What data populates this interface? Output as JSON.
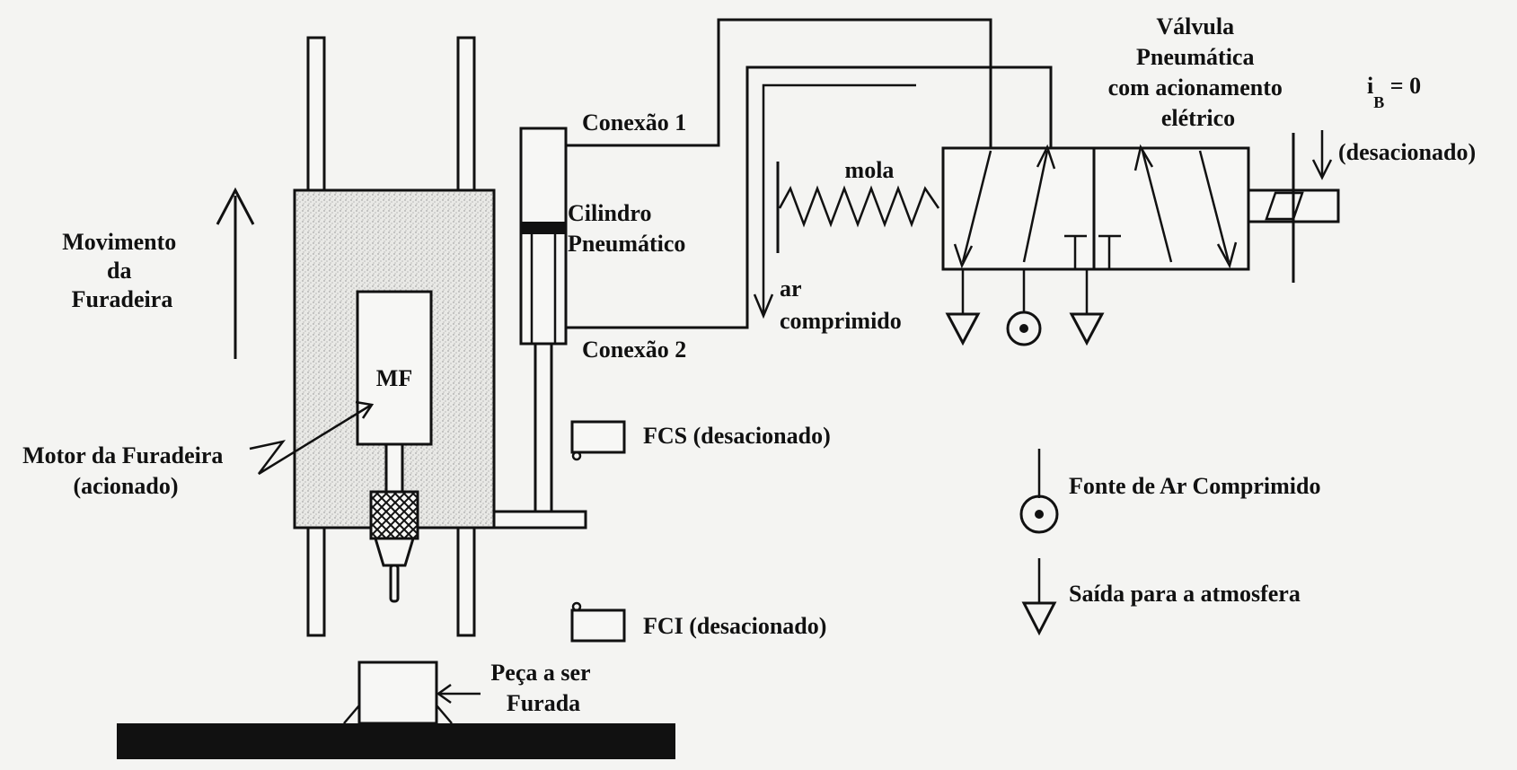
{
  "labels": {
    "movimento": [
      "Movimento",
      "da",
      "Furadeira"
    ],
    "mf": "MF",
    "motor": [
      "Motor da Furadeira",
      "(acionado)"
    ],
    "conexao1": "Conexão 1",
    "conexao2": "Conexão 2",
    "cilindro": [
      "Cilindro",
      "Pneumático"
    ],
    "ar": [
      "ar",
      "comprimido"
    ],
    "mola": "mola",
    "valvula": [
      "Válvula",
      "Pneumática",
      "com acionamento",
      "elétrico"
    ],
    "ib_main": "i",
    "ib_sub": "B",
    "ib_value": " = 0",
    "ib_state": "(desacionado)",
    "fcs": "FCS (desacionado)",
    "fci": "FCI (desacionado)",
    "peca": [
      "Peça a ser",
      "Furada"
    ],
    "fonte": "Fonte de Ar  Comprimido",
    "saida": "Saída para a atmosfera"
  },
  "colors": {
    "ink": "#111111",
    "speckle": "#e6e6e3",
    "paper": "#f4f4f2"
  }
}
